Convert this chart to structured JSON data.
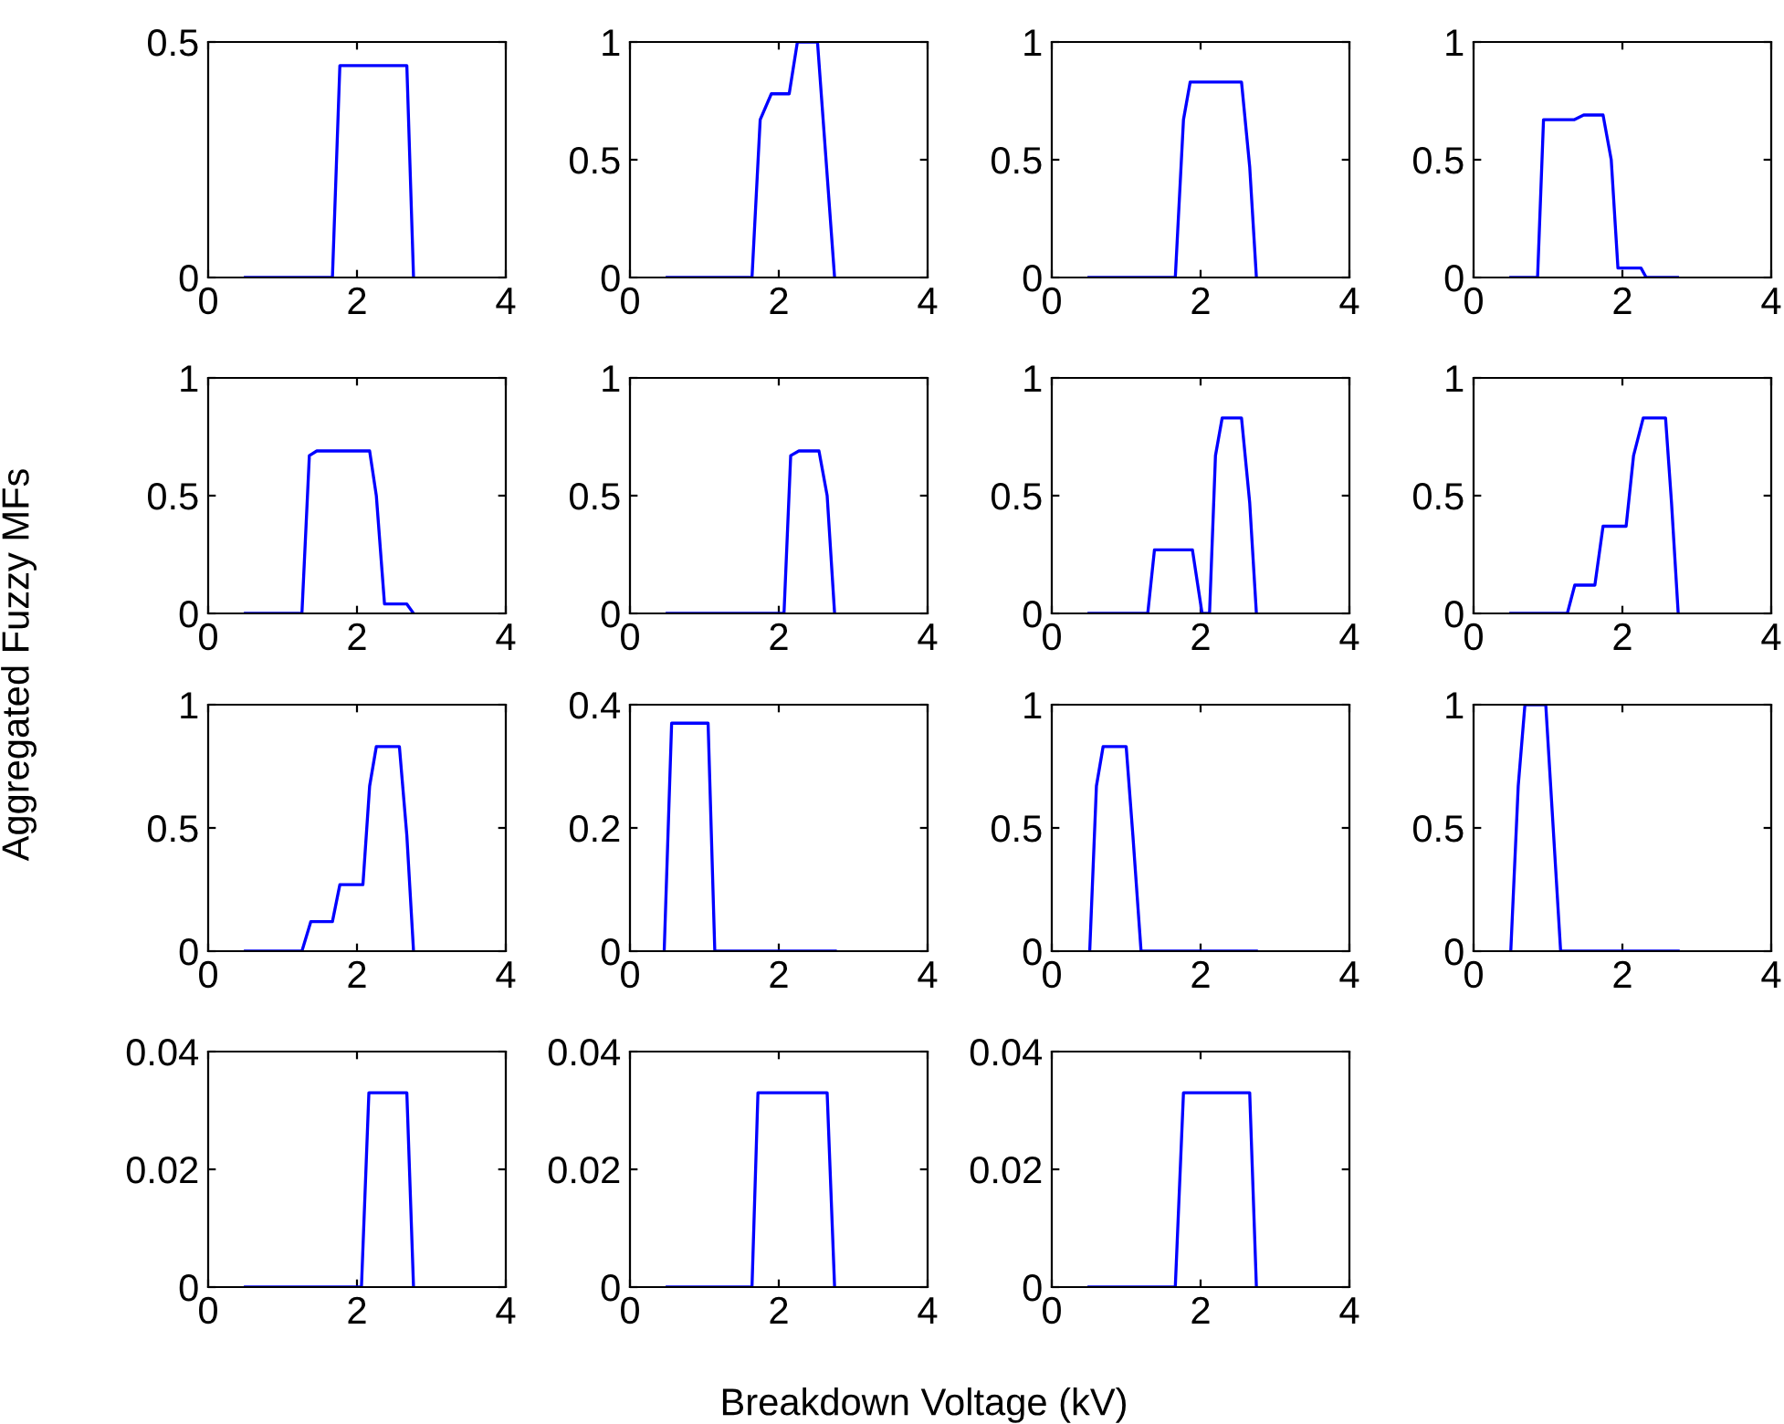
{
  "chart_data": [
    {
      "type": "line",
      "series": [
        {
          "color": "#0000ff",
          "x": [
            0.5,
            1.67,
            1.77,
            2.67,
            2.76
          ],
          "values": [
            0,
            0,
            0.45,
            0.45,
            0
          ]
        }
      ],
      "xlim": [
        0,
        4
      ],
      "xticks": [
        0,
        2,
        4
      ],
      "ylim": [
        0,
        0.5
      ],
      "yticks": [
        0,
        0.5
      ]
    },
    {
      "type": "line",
      "series": [
        {
          "color": "#0000ff",
          "x": [
            0.5,
            1.64,
            1.75,
            1.9,
            2.14,
            2.25,
            2.52,
            2.75
          ],
          "values": [
            0,
            0,
            0.67,
            0.78,
            0.78,
            1,
            1,
            0
          ]
        }
      ],
      "xlim": [
        0,
        4
      ],
      "xticks": [
        0,
        2,
        4
      ],
      "ylim": [
        0,
        1
      ],
      "yticks": [
        0,
        0.5,
        1
      ]
    },
    {
      "type": "line",
      "series": [
        {
          "color": "#0000ff",
          "x": [
            0.5,
            1.66,
            1.77,
            1.86,
            2.55,
            2.66,
            2.75
          ],
          "values": [
            0,
            0,
            0.67,
            0.83,
            0.83,
            0.47,
            0
          ]
        }
      ],
      "xlim": [
        0,
        4
      ],
      "xticks": [
        0,
        2,
        4
      ],
      "ylim": [
        0,
        1
      ],
      "yticks": [
        0,
        0.5,
        1
      ]
    },
    {
      "type": "line",
      "series": [
        {
          "color": "#0000ff",
          "x": [
            0.5,
            0.86,
            0.94,
            1.35,
            1.48,
            1.74,
            1.85,
            1.94,
            2.25,
            2.32,
            2.74
          ],
          "values": [
            0,
            0,
            0.67,
            0.67,
            0.69,
            0.69,
            0.5,
            0.04,
            0.04,
            0,
            0
          ]
        }
      ],
      "xlim": [
        0,
        4
      ],
      "xticks": [
        0,
        2,
        4
      ],
      "ylim": [
        0,
        1
      ],
      "yticks": [
        0,
        0.5,
        1
      ]
    },
    {
      "type": "line",
      "ylabel": "Aggregated Fuzzy MFs",
      "series": [
        {
          "color": "#0000ff",
          "x": [
            0.5,
            1.26,
            1.36,
            1.46,
            2.17,
            2.26,
            2.37,
            2.67,
            2.76
          ],
          "values": [
            0,
            0,
            0.67,
            0.69,
            0.69,
            0.5,
            0.04,
            0.04,
            0
          ]
        }
      ],
      "xlim": [
        0,
        4
      ],
      "xticks": [
        0,
        2,
        4
      ],
      "ylim": [
        0,
        1
      ],
      "yticks": [
        0,
        0.5,
        1
      ]
    },
    {
      "type": "line",
      "series": [
        {
          "color": "#0000ff",
          "x": [
            0.5,
            2.07,
            2.16,
            2.27,
            2.54,
            2.65,
            2.75
          ],
          "values": [
            0,
            0,
            0.67,
            0.69,
            0.69,
            0.5,
            0
          ]
        }
      ],
      "xlim": [
        0,
        4
      ],
      "xticks": [
        0,
        2,
        4
      ],
      "ylim": [
        0,
        1
      ],
      "yticks": [
        0,
        0.5,
        1
      ]
    },
    {
      "type": "line",
      "series": [
        {
          "color": "#0000ff",
          "x": [
            0.5,
            1.29,
            1.38,
            1.89,
            2.02,
            2.12,
            2.2,
            2.29,
            2.55,
            2.66,
            2.75
          ],
          "values": [
            0,
            0,
            0.27,
            0.27,
            0,
            0,
            0.67,
            0.83,
            0.83,
            0.47,
            0
          ]
        }
      ],
      "xlim": [
        0,
        4
      ],
      "xticks": [
        0,
        2,
        4
      ],
      "ylim": [
        0,
        1
      ],
      "yticks": [
        0,
        0.5,
        1
      ]
    },
    {
      "type": "line",
      "series": [
        {
          "color": "#0000ff",
          "x": [
            0.5,
            1.26,
            1.36,
            1.63,
            1.74,
            2.05,
            2.15,
            2.28,
            2.58,
            2.66,
            2.75
          ],
          "values": [
            0,
            0,
            0.12,
            0.12,
            0.37,
            0.37,
            0.67,
            0.83,
            0.83,
            0.47,
            0
          ]
        }
      ],
      "xlim": [
        0,
        4
      ],
      "xticks": [
        0,
        2,
        4
      ],
      "ylim": [
        0,
        1
      ],
      "yticks": [
        0,
        0.5,
        1
      ]
    },
    {
      "type": "line",
      "series": [
        {
          "color": "#0000ff",
          "x": [
            0.5,
            1.26,
            1.38,
            1.67,
            1.77,
            2.08,
            2.17,
            2.26,
            2.57,
            2.67,
            2.76
          ],
          "values": [
            0,
            0,
            0.12,
            0.12,
            0.27,
            0.27,
            0.67,
            0.83,
            0.83,
            0.47,
            0
          ]
        }
      ],
      "xlim": [
        0,
        4
      ],
      "xticks": [
        0,
        2,
        4
      ],
      "ylim": [
        0,
        1
      ],
      "yticks": [
        0,
        0.5,
        1
      ]
    },
    {
      "type": "line",
      "series": [
        {
          "color": "#0000ff",
          "x": [
            0.46,
            0.56,
            1.05,
            1.14,
            2.76
          ],
          "values": [
            0,
            0.37,
            0.37,
            0,
            0
          ]
        }
      ],
      "xlim": [
        0,
        4
      ],
      "xticks": [
        0,
        2,
        4
      ],
      "ylim": [
        0,
        0.4
      ],
      "yticks": [
        0,
        0.2,
        0.4
      ]
    },
    {
      "type": "line",
      "series": [
        {
          "color": "#0000ff",
          "x": [
            0.51,
            0.6,
            0.69,
            1.0,
            1.09,
            1.2,
            2.75
          ],
          "values": [
            0,
            0.67,
            0.83,
            0.83,
            0.47,
            0,
            0
          ]
        }
      ],
      "xlim": [
        0,
        4
      ],
      "xticks": [
        0,
        2,
        4
      ],
      "ylim": [
        0,
        1
      ],
      "yticks": [
        0,
        0.5,
        1
      ]
    },
    {
      "type": "line",
      "series": [
        {
          "color": "#0000ff",
          "x": [
            0.5,
            0.6,
            0.69,
            0.97,
            1.17,
            2.75
          ],
          "values": [
            0,
            0.67,
            1,
            1,
            0,
            0
          ]
        }
      ],
      "xlim": [
        0,
        4
      ],
      "xticks": [
        0,
        2,
        4
      ],
      "ylim": [
        0,
        1
      ],
      "yticks": [
        0,
        0.5,
        1
      ]
    },
    {
      "type": "line",
      "series": [
        {
          "color": "#0000ff",
          "x": [
            0.5,
            2.06,
            2.16,
            2.67,
            2.76
          ],
          "values": [
            0,
            0,
            0.033,
            0.033,
            0
          ]
        }
      ],
      "xlim": [
        0,
        4
      ],
      "xticks": [
        0,
        2,
        4
      ],
      "ylim": [
        0,
        0.04
      ],
      "yticks": [
        0,
        0.02,
        0.04
      ]
    },
    {
      "type": "line",
      "xlabel": "Breakdown Voltage (kV)",
      "series": [
        {
          "color": "#0000ff",
          "x": [
            0.5,
            1.64,
            1.72,
            2.65,
            2.75
          ],
          "values": [
            0,
            0,
            0.033,
            0.033,
            0
          ]
        }
      ],
      "xlim": [
        0,
        4
      ],
      "xticks": [
        0,
        2,
        4
      ],
      "ylim": [
        0,
        0.04
      ],
      "yticks": [
        0,
        0.02,
        0.04
      ]
    },
    {
      "type": "line",
      "series": [
        {
          "color": "#0000ff",
          "x": [
            0.5,
            1.66,
            1.77,
            2.66,
            2.75
          ],
          "values": [
            0,
            0,
            0.033,
            0.033,
            0
          ]
        }
      ],
      "xlim": [
        0,
        4
      ],
      "xticks": [
        0,
        2,
        4
      ],
      "ylim": [
        0,
        0.04
      ],
      "yticks": [
        0,
        0.02,
        0.04
      ]
    }
  ]
}
